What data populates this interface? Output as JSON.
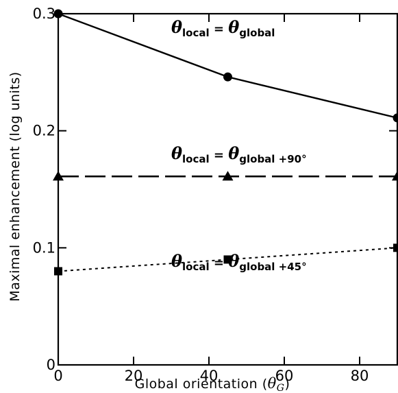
{
  "chart_data": {
    "type": "line",
    "xlabel_prefix": "Global orientation (",
    "xlabel_theta": "θ",
    "xlabel_sub": "G",
    "xlabel_suffix": ")",
    "ylabel": "Maximal enhancement (log units)",
    "xlim": [
      0,
      90
    ],
    "ylim": [
      0,
      0.3
    ],
    "x_ticks": [
      0,
      20,
      40,
      60,
      80
    ],
    "x_tick_labels": [
      "0",
      "20",
      "40",
      "60",
      "80"
    ],
    "y_ticks": [
      0,
      0.1,
      0.2,
      0.3
    ],
    "y_tick_labels": [
      "0",
      "0.1",
      "0.2",
      "0.3"
    ],
    "grid": false,
    "series": [
      {
        "key": "same",
        "marker": "circle",
        "line_style": "solid",
        "x": [
          0,
          45,
          90
        ],
        "y": [
          0.3,
          0.246,
          0.211
        ],
        "label": {
          "theta": "θ",
          "local_sub": "local",
          "eq": "=",
          "global_sub": "global",
          "offset": ""
        }
      },
      {
        "key": "plus90",
        "marker": "triangle",
        "line_style": "long-dash",
        "x": [
          0,
          45,
          90
        ],
        "y": [
          0.161,
          0.161,
          0.161
        ],
        "label": {
          "theta": "θ",
          "local_sub": "local",
          "eq": "=",
          "global_sub": "global",
          "offset": "+90°"
        }
      },
      {
        "key": "plus45",
        "marker": "square",
        "line_style": "dotted",
        "x": [
          0,
          45,
          90
        ],
        "y": [
          0.08,
          0.09,
          0.1
        ],
        "label": {
          "theta": "θ",
          "local_sub": "local",
          "eq": "=",
          "global_sub": "global",
          "offset": "+45°"
        }
      }
    ]
  }
}
